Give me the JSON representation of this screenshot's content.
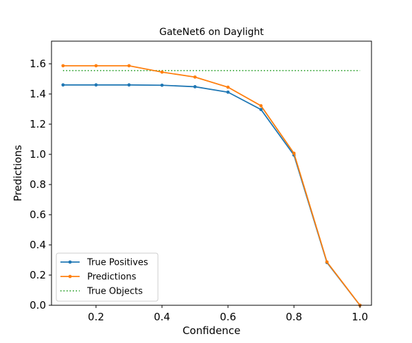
{
  "chart_data": {
    "type": "line",
    "title": "GateNet6 on Daylight",
    "xlabel": "Confidence",
    "ylabel": "Predictions",
    "xlim": [
      0.065,
      1.035
    ],
    "ylim": [
      0.0,
      1.75
    ],
    "xticks": [
      0.2,
      0.4,
      0.6,
      0.8,
      1.0
    ],
    "xtick_labels": [
      "0.2",
      "0.4",
      "0.6",
      "0.8",
      "1.0"
    ],
    "yticks": [
      0.0,
      0.2,
      0.4,
      0.6,
      0.8,
      1.0,
      1.2,
      1.4,
      1.6
    ],
    "ytick_labels": [
      "0.0",
      "0.2",
      "0.4",
      "0.6",
      "0.8",
      "1.0",
      "1.2",
      "1.4",
      "1.6"
    ],
    "grid": false,
    "legend_position": "lower-left",
    "series": [
      {
        "name": "True Positives",
        "color": "#1f77b4",
        "style": "solid-marker",
        "x": [
          0.1,
          0.2,
          0.3,
          0.4,
          0.5,
          0.6,
          0.7,
          0.8,
          0.9,
          1.0
        ],
        "y": [
          1.46,
          1.46,
          1.46,
          1.458,
          1.448,
          1.412,
          1.297,
          0.995,
          0.283,
          0.0
        ]
      },
      {
        "name": "Predictions",
        "color": "#ff7f0e",
        "style": "solid-marker",
        "x": [
          0.1,
          0.2,
          0.3,
          0.4,
          0.5,
          0.6,
          0.7,
          0.8,
          0.9,
          1.0
        ],
        "y": [
          1.587,
          1.587,
          1.587,
          1.545,
          1.512,
          1.445,
          1.322,
          1.007,
          0.287,
          0.0
        ]
      },
      {
        "name": "True Objects",
        "color": "#2ca02c",
        "style": "dotted",
        "x": [
          0.1,
          1.0
        ],
        "y": [
          1.555,
          1.555
        ]
      }
    ]
  }
}
